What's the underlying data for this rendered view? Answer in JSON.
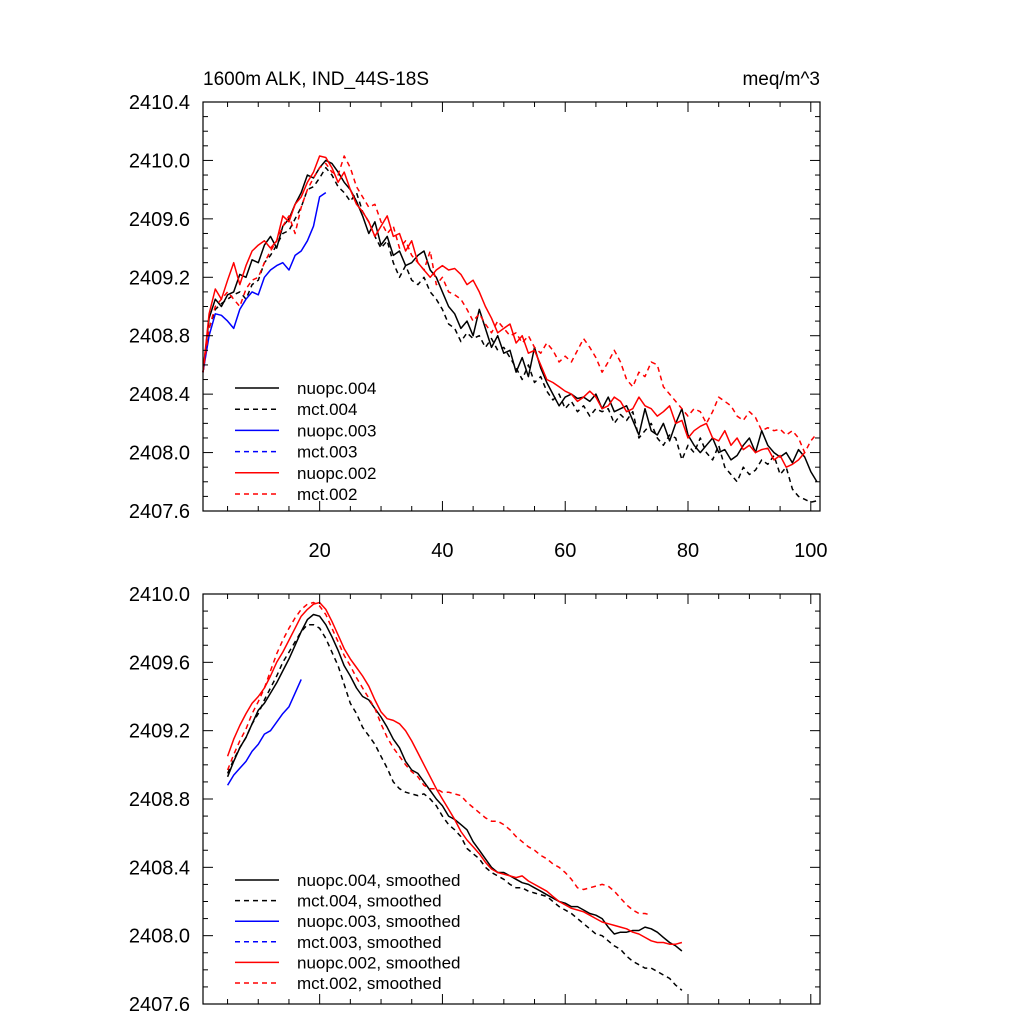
{
  "chart_data": [
    {
      "type": "line",
      "title_left": "1600m ALK, IND_44S-18S",
      "title_right": "meq/m^3",
      "xlabel": "",
      "ylabel": "",
      "xlim": [
        1,
        101.5
      ],
      "ylim": [
        2407.6,
        2410.4
      ],
      "xticks": [
        20,
        40,
        60,
        80,
        100
      ],
      "yticks": [
        2407.6,
        2408.0,
        2408.4,
        2408.8,
        2409.2,
        2409.6,
        2410.0,
        2410.4
      ],
      "ytick_labels": [
        "2407.6",
        "2408.0",
        "2408.4",
        "2408.8",
        "2409.2",
        "2409.6",
        "2410.0",
        "2410.4"
      ],
      "legend_position": "bottom-left",
      "series": [
        {
          "name": "nuopc.004",
          "color": "#000000",
          "dash": "solid",
          "x_start": 1,
          "values": [
            2408.55,
            2408.92,
            2409.05,
            2409.0,
            2409.08,
            2409.1,
            2409.22,
            2409.2,
            2409.32,
            2409.3,
            2409.42,
            2409.48,
            2409.4,
            2409.55,
            2409.6,
            2409.7,
            2409.78,
            2409.9,
            2409.88,
            2409.95,
            2410.0,
            2409.98,
            2409.92,
            2409.85,
            2409.8,
            2409.72,
            2409.62,
            2409.5,
            2409.58,
            2409.42,
            2409.48,
            2409.35,
            2409.38,
            2409.28,
            2409.3,
            2409.35,
            2409.38,
            2409.25,
            2409.2,
            2409.1,
            2409.0,
            2408.95,
            2408.85,
            2408.9,
            2408.8,
            2408.98,
            2408.85,
            2408.72,
            2408.8,
            2408.68,
            2408.7,
            2408.55,
            2408.65,
            2408.52,
            2408.72,
            2408.58,
            2408.48,
            2408.4,
            2408.32,
            2408.38,
            2408.4,
            2408.37,
            2408.38,
            2408.35,
            2408.4,
            2408.3,
            2408.38,
            2408.28,
            2408.3,
            2408.32,
            2408.22,
            2408.12,
            2408.3,
            2408.15,
            2408.12,
            2408.2,
            2408.08,
            2408.2,
            2408.3,
            2408.12,
            2408.05,
            2408.0,
            2408.05,
            2408.1,
            2408.0,
            2408.02,
            2407.95,
            2407.98,
            2408.05,
            2408.1,
            2408.0,
            2408.15,
            2408.05,
            2408.0,
            2407.97,
            2408.0,
            2407.93,
            2408.02,
            2407.97,
            2407.87,
            2407.8
          ]
        },
        {
          "name": "mct.004",
          "color": "#000000",
          "dash": "dashed",
          "x_start": 1,
          "values": [
            2408.55,
            2408.85,
            2408.98,
            2409.02,
            2409.05,
            2409.08,
            2409.1,
            2409.05,
            2409.15,
            2409.18,
            2409.3,
            2409.35,
            2409.42,
            2409.5,
            2409.52,
            2409.6,
            2409.68,
            2409.8,
            2409.82,
            2409.88,
            2409.95,
            2409.9,
            2409.82,
            2409.78,
            2409.72,
            2409.78,
            2409.65,
            2409.58,
            2409.48,
            2409.4,
            2409.45,
            2409.3,
            2409.2,
            2409.28,
            2409.18,
            2409.15,
            2409.2,
            2409.1,
            2409.05,
            2408.98,
            2408.88,
            2408.85,
            2408.76,
            2408.82,
            2408.78,
            2408.8,
            2408.72,
            2408.78,
            2408.7,
            2408.72,
            2408.65,
            2408.58,
            2408.5,
            2408.6,
            2408.48,
            2408.52,
            2408.42,
            2408.36,
            2408.4,
            2408.3,
            2408.35,
            2408.28,
            2408.32,
            2408.25,
            2408.3,
            2408.28,
            2408.3,
            2408.2,
            2408.26,
            2408.22,
            2408.28,
            2408.1,
            2408.15,
            2408.2,
            2408.1,
            2408.05,
            2408.12,
            2408.1,
            2407.95,
            2408.05,
            2408.0,
            2408.1,
            2408.0,
            2407.95,
            2408.05,
            2407.9,
            2407.85,
            2407.8,
            2407.9,
            2407.85,
            2407.88,
            2407.95,
            2407.92,
            2407.98,
            2407.85,
            2407.9,
            2407.75,
            2407.7,
            2407.68,
            2407.66,
            2407.67
          ]
        },
        {
          "name": "nuopc.003",
          "color": "#0000ff",
          "dash": "solid",
          "x_start": 1,
          "values": [
            2408.55,
            2408.8,
            2408.95,
            2408.94,
            2408.9,
            2408.85,
            2408.98,
            2409.05,
            2409.1,
            2409.08,
            2409.2,
            2409.25,
            2409.28,
            2409.3,
            2409.25,
            2409.35,
            2409.38,
            2409.45,
            2409.55,
            2409.75,
            2409.78
          ]
        },
        {
          "name": "mct.003",
          "color": "#0000ff",
          "dash": "dashed",
          "x_start": 1,
          "values": []
        },
        {
          "name": "nuopc.002",
          "color": "#ff0000",
          "dash": "solid",
          "x_start": 1,
          "values": [
            2408.55,
            2408.95,
            2409.12,
            2409.05,
            2409.18,
            2409.3,
            2409.15,
            2409.28,
            2409.38,
            2409.42,
            2409.45,
            2409.4,
            2409.45,
            2409.62,
            2409.58,
            2409.7,
            2409.75,
            2409.85,
            2409.92,
            2410.03,
            2410.02,
            2409.95,
            2409.85,
            2409.92,
            2409.8,
            2409.7,
            2409.65,
            2409.58,
            2409.48,
            2409.55,
            2409.62,
            2409.48,
            2409.5,
            2409.38,
            2409.45,
            2409.3,
            2409.25,
            2409.2,
            2409.25,
            2409.28,
            2409.25,
            2409.26,
            2409.22,
            2409.15,
            2409.18,
            2409.1,
            2409.0,
            2408.92,
            2408.82,
            2408.85,
            2408.88,
            2408.75,
            2408.8,
            2408.68,
            2408.7,
            2408.6,
            2408.5,
            2408.48,
            2408.45,
            2408.42,
            2408.4,
            2408.35,
            2408.38,
            2408.42,
            2408.38,
            2408.3,
            2408.32,
            2408.38,
            2408.35,
            2408.28,
            2408.3,
            2408.38,
            2408.32,
            2408.3,
            2408.25,
            2408.28,
            2408.32,
            2408.2,
            2408.22,
            2408.1,
            2408.15,
            2408.18,
            2408.2,
            2408.1,
            2408.08,
            2408.15,
            2408.05,
            2408.1,
            2408.02,
            2408.05,
            2408.0,
            2408.02,
            2408.03,
            2407.95,
            2407.98,
            2407.9,
            2407.92,
            2407.95,
            2408.0
          ]
        },
        {
          "name": "mct.002",
          "color": "#ff0000",
          "dash": "dashed",
          "x_start": 1,
          "values": [
            2408.55,
            2408.85,
            2409.0,
            2409.05,
            2409.1,
            2409.05,
            2409.0,
            2409.12,
            2409.18,
            2409.2,
            2409.3,
            2409.38,
            2409.45,
            2409.55,
            2409.62,
            2409.5,
            2409.68,
            2409.8,
            2409.88,
            2409.95,
            2409.98,
            2409.92,
            2409.9,
            2410.03,
            2409.95,
            2409.82,
            2409.75,
            2409.68,
            2409.7,
            2409.58,
            2409.5,
            2409.55,
            2409.4,
            2409.45,
            2409.35,
            2409.3,
            2409.25,
            2409.38,
            2409.15,
            2409.2,
            2409.1,
            2409.08,
            2409.05,
            2408.98,
            2408.9,
            2408.95,
            2408.88,
            2408.82,
            2408.9,
            2408.85,
            2408.8,
            2408.82,
            2408.75,
            2408.8,
            2408.72,
            2408.68,
            2408.75,
            2408.7,
            2408.62,
            2408.66,
            2408.62,
            2408.7,
            2408.78,
            2408.72,
            2408.65,
            2408.55,
            2408.62,
            2408.7,
            2408.62,
            2408.5,
            2408.45,
            2408.55,
            2408.52,
            2408.62,
            2408.6,
            2408.45,
            2408.4,
            2408.35,
            2408.3,
            2408.25,
            2408.3,
            2408.28,
            2408.2,
            2408.28,
            2408.38,
            2408.35,
            2408.32,
            2408.25,
            2408.22,
            2408.28,
            2408.24,
            2408.15,
            2408.17,
            2408.15,
            2408.16,
            2408.12,
            2408.15,
            2408.1,
            2408.0,
            2408.08,
            2408.13
          ]
        }
      ]
    },
    {
      "type": "line",
      "title_left": "",
      "title_right": "",
      "xlabel": "",
      "ylabel": "",
      "xlim": [
        1,
        101.5
      ],
      "ylim": [
        2407.6,
        2410.0
      ],
      "xticks": [
        20,
        40,
        60,
        80,
        100
      ],
      "yticks": [
        2407.6,
        2408.0,
        2408.4,
        2408.8,
        2409.2,
        2409.6,
        2410.0
      ],
      "ytick_labels": [
        "2407.6",
        "2408.0",
        "2408.4",
        "2408.8",
        "2409.2",
        "2409.6",
        "2410.0"
      ],
      "legend_position": "bottom-left",
      "series": [
        {
          "name": "nuopc.004, smoothed",
          "color": "#000000",
          "dash": "solid",
          "x_start": 5,
          "values": [
            2408.93,
            2409.02,
            2409.1,
            2409.16,
            2409.24,
            2409.32,
            2409.36,
            2409.42,
            2409.48,
            2409.55,
            2409.62,
            2409.7,
            2409.78,
            2409.85,
            2409.88,
            2409.87,
            2409.82,
            2409.75,
            2409.67,
            2409.58,
            2409.52,
            2409.45,
            2409.4,
            2409.38,
            2409.33,
            2409.28,
            2409.22,
            2409.15,
            2409.1,
            2409.02,
            2408.97,
            2408.95,
            2408.9,
            2408.85,
            2408.8,
            2408.76,
            2408.7,
            2408.68,
            2408.65,
            2408.62,
            2408.55,
            2408.5,
            2408.45,
            2408.4,
            2408.37,
            2408.37,
            2408.35,
            2408.33,
            2408.31,
            2408.3,
            2408.28,
            2408.26,
            2408.24,
            2408.22,
            2408.2,
            2408.19,
            2408.17,
            2408.17,
            2408.15,
            2408.13,
            2408.12,
            2408.1,
            2408.05,
            2408.01,
            2408.02,
            2408.02,
            2408.03,
            2408.03,
            2408.05,
            2408.04,
            2408.02,
            2407.99,
            2407.96,
            2407.94,
            2407.91
          ]
        },
        {
          "name": "mct.004, smoothed",
          "color": "#000000",
          "dash": "dashed",
          "x_start": 5,
          "values": [
            2408.95,
            2409.03,
            2409.1,
            2409.16,
            2409.24,
            2409.3,
            2409.38,
            2409.45,
            2409.52,
            2409.6,
            2409.66,
            2409.72,
            2409.78,
            2409.82,
            2409.82,
            2409.8,
            2409.74,
            2409.66,
            2409.58,
            2409.47,
            2409.36,
            2409.3,
            2409.22,
            2409.17,
            2409.12,
            2409.05,
            2408.98,
            2408.9,
            2408.86,
            2408.84,
            2408.83,
            2408.82,
            2408.83,
            2408.8,
            2408.76,
            2408.7,
            2408.65,
            2408.62,
            2408.58,
            2408.51,
            2408.48,
            2408.45,
            2408.4,
            2408.37,
            2408.35,
            2408.33,
            2408.3,
            2408.28,
            2408.28,
            2408.26,
            2408.25,
            2408.24,
            2408.23,
            2408.2,
            2408.17,
            2408.15,
            2408.13,
            2408.1,
            2408.07,
            2408.04,
            2408.01,
            2408.0,
            2407.97,
            2407.94,
            2407.92,
            2407.88,
            2407.85,
            2407.83,
            2407.81,
            2407.81,
            2407.79,
            2407.77,
            2407.75,
            2407.71,
            2407.68
          ]
        },
        {
          "name": "nuopc.003, smoothed",
          "color": "#0000ff",
          "dash": "solid",
          "x_start": 5,
          "values": [
            2408.88,
            2408.94,
            2408.98,
            2409.02,
            2409.08,
            2409.12,
            2409.18,
            2409.2,
            2409.25,
            2409.3,
            2409.34,
            2409.42,
            2409.5
          ]
        },
        {
          "name": "mct.003, smoothed",
          "color": "#0000ff",
          "dash": "dashed",
          "x_start": 5,
          "values": []
        },
        {
          "name": "nuopc.002, smoothed",
          "color": "#ff0000",
          "dash": "solid",
          "x_start": 5,
          "values": [
            2409.05,
            2409.15,
            2409.23,
            2409.3,
            2409.36,
            2409.4,
            2409.45,
            2409.52,
            2409.6,
            2409.66,
            2409.73,
            2409.8,
            2409.87,
            2409.91,
            2409.94,
            2409.95,
            2409.91,
            2409.84,
            2409.76,
            2409.68,
            2409.62,
            2409.57,
            2409.52,
            2409.46,
            2409.38,
            2409.31,
            2409.27,
            2409.26,
            2409.24,
            2409.2,
            2409.14,
            2409.07,
            2409.0,
            2408.93,
            2408.86,
            2408.8,
            2408.74,
            2408.68,
            2408.61,
            2408.56,
            2408.52,
            2408.48,
            2408.43,
            2408.39,
            2408.37,
            2408.36,
            2408.35,
            2408.34,
            2408.35,
            2408.32,
            2408.3,
            2408.28,
            2408.26,
            2408.23,
            2408.2,
            2408.18,
            2408.16,
            2408.15,
            2408.14,
            2408.12,
            2408.1,
            2408.08,
            2408.07,
            2408.06,
            2408.05,
            2408.04,
            2408.02,
            2408.01,
            2407.99,
            2407.97,
            2407.96,
            2407.96,
            2407.95,
            2407.95,
            2407.96
          ]
        },
        {
          "name": "mct.002, smoothed",
          "color": "#ff0000",
          "dash": "dashed",
          "x_start": 5,
          "values": [
            2408.97,
            2409.06,
            2409.14,
            2409.21,
            2409.3,
            2409.37,
            2409.45,
            2409.55,
            2409.65,
            2409.73,
            2409.8,
            2409.86,
            2409.91,
            2409.94,
            2409.95,
            2409.93,
            2409.88,
            2409.8,
            2409.72,
            2409.64,
            2409.58,
            2409.51,
            2409.45,
            2409.39,
            2409.33,
            2409.24,
            2409.16,
            2409.1,
            2409.05,
            2409.0,
            2408.96,
            2408.93,
            2408.88,
            2408.86,
            2408.86,
            2408.84,
            2408.84,
            2408.83,
            2408.82,
            2408.78,
            2408.75,
            2408.72,
            2408.69,
            2408.67,
            2408.67,
            2408.65,
            2408.62,
            2408.58,
            2408.55,
            2408.52,
            2408.5,
            2408.47,
            2408.45,
            2408.42,
            2408.4,
            2408.37,
            2408.33,
            2408.28,
            2408.27,
            2408.28,
            2408.29,
            2408.3,
            2408.29,
            2408.26,
            2408.22,
            2408.18,
            2408.15,
            2408.13,
            2408.13,
            2408.12
          ]
        }
      ]
    }
  ]
}
